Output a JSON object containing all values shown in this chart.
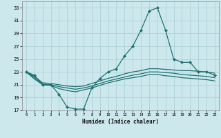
{
  "xlabel": "Humidex (Indice chaleur)",
  "background_color": "#cce8ec",
  "grid_color": "#a8cdd4",
  "line_color": "#1e7070",
  "xlim": [
    -0.5,
    23.5
  ],
  "ylim": [
    17,
    34
  ],
  "yticks": [
    17,
    19,
    21,
    23,
    25,
    27,
    29,
    31,
    33
  ],
  "xticks": [
    0,
    1,
    2,
    3,
    4,
    5,
    6,
    7,
    8,
    9,
    10,
    11,
    12,
    13,
    14,
    15,
    16,
    17,
    18,
    19,
    20,
    21,
    22,
    23
  ],
  "series": [
    {
      "x": [
        0,
        1,
        2,
        3,
        4,
        5,
        6,
        7,
        8,
        9,
        10,
        11,
        12,
        13,
        14,
        15,
        16,
        17,
        18,
        19,
        20,
        21,
        22,
        23
      ],
      "y": [
        23,
        22.5,
        21,
        21,
        19.5,
        17.5,
        17.2,
        17.2,
        20.5,
        22,
        23,
        23.5,
        25.5,
        27,
        29.5,
        32.5,
        33,
        29.5,
        25,
        24.5,
        24.5,
        23,
        23,
        22.5
      ],
      "marker": "D",
      "markersize": 2.0,
      "lw": 0.9
    },
    {
      "x": [
        0,
        1,
        2,
        3,
        4,
        5,
        6,
        7,
        8,
        9,
        10,
        11,
        12,
        13,
        14,
        15,
        16,
        17,
        18,
        19,
        20,
        21,
        22,
        23
      ],
      "y": [
        23,
        22.3,
        21.3,
        21.2,
        21.0,
        20.8,
        20.7,
        20.8,
        21.2,
        21.6,
        22.0,
        22.3,
        22.7,
        23.0,
        23.2,
        23.5,
        23.5,
        23.4,
        23.3,
        23.2,
        23.2,
        23.1,
        23.0,
        22.8
      ],
      "marker": null,
      "markersize": 0,
      "lw": 0.9
    },
    {
      "x": [
        0,
        1,
        2,
        3,
        4,
        5,
        6,
        7,
        8,
        9,
        10,
        11,
        12,
        13,
        14,
        15,
        16,
        17,
        18,
        19,
        20,
        21,
        22,
        23
      ],
      "y": [
        23,
        22.1,
        21.1,
        21.0,
        20.7,
        20.5,
        20.3,
        20.5,
        20.8,
        21.2,
        21.6,
        21.9,
        22.2,
        22.5,
        22.7,
        23.0,
        23.0,
        22.9,
        22.8,
        22.6,
        22.5,
        22.4,
        22.3,
        22.1
      ],
      "marker": null,
      "markersize": 0,
      "lw": 0.9
    },
    {
      "x": [
        0,
        1,
        2,
        3,
        4,
        5,
        6,
        7,
        8,
        9,
        10,
        11,
        12,
        13,
        14,
        15,
        16,
        17,
        18,
        19,
        20,
        21,
        22,
        23
      ],
      "y": [
        23,
        21.9,
        21.0,
        20.9,
        20.4,
        20.1,
        19.9,
        20.2,
        20.5,
        20.9,
        21.3,
        21.6,
        21.9,
        22.1,
        22.3,
        22.6,
        22.6,
        22.4,
        22.3,
        22.1,
        22.0,
        21.9,
        21.8,
        21.6
      ],
      "marker": null,
      "markersize": 0,
      "lw": 0.9
    }
  ]
}
